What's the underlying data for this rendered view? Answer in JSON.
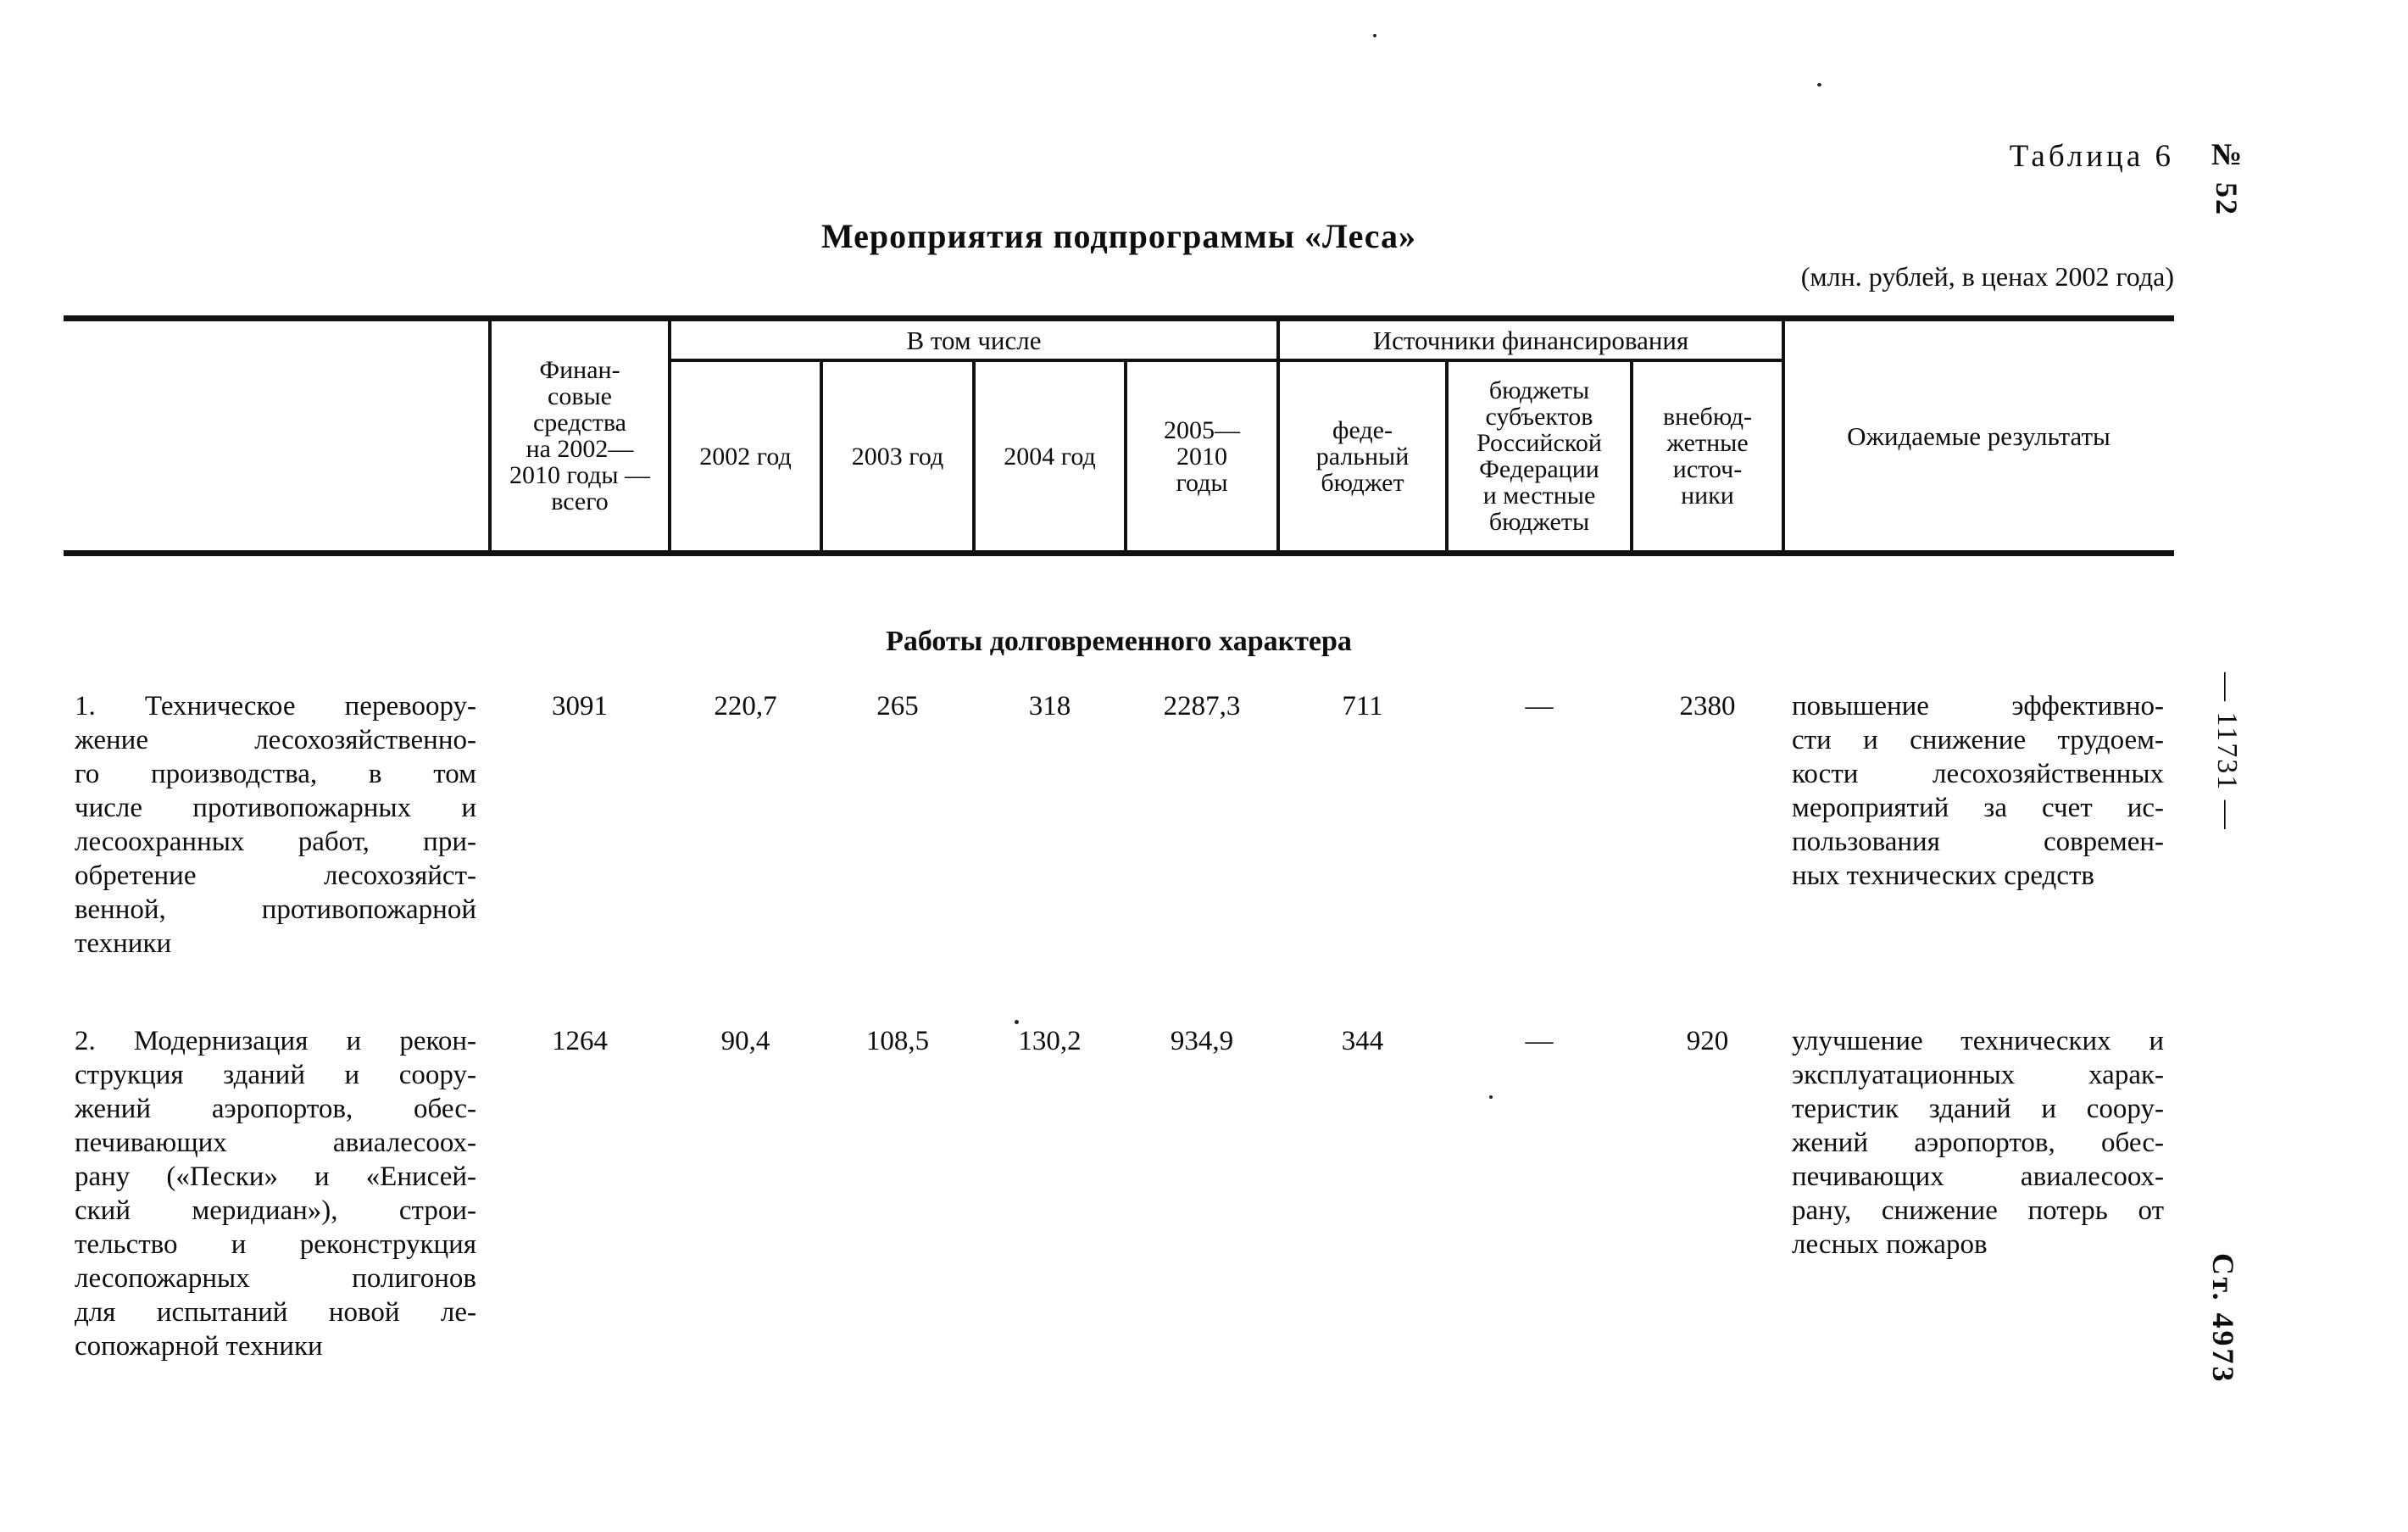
{
  "page": {
    "corner_label": "Таблица 6",
    "issue_number": "№ 52",
    "running_page_number": "— 11731 —",
    "article_number": "Ст. 4973",
    "title": "Мероприятия подпрограммы «Леса»",
    "units_note": "(млн. рублей, в ценах 2002 года)"
  },
  "table": {
    "header": {
      "finance_total": "Финан-\nсовые\nсредства\nна 2002—\n2010 годы —\nвсего",
      "including_group": "В том числе",
      "year_2002": "2002 год",
      "year_2003": "2003 год",
      "year_2004": "2004 год",
      "years_2005_2010": "2005—\n2010\nгоды",
      "sources_group": "Источники финансирования",
      "federal_budget": "феде-\nральный\nбюджет",
      "regional_budgets": "бюджеты\nсубъектов\nРоссийской\nФедерации\nи местные\nбюджеты",
      "extrabudgetary": "внебюд-\nжетные\nисточ-\nники",
      "expected_results": "Ожидаемые результаты"
    },
    "section_title": "Работы долговременного характера",
    "rows": [
      {
        "label_lines": [
          "1. Техническое перевоору-",
          "жение лесохозяйственно-",
          "го производства, в том",
          "числе противопожарных и",
          "лесоохранных работ, при-",
          "обретение лесохозяйст-",
          "венной, противопожарной",
          "техники"
        ],
        "values": [
          "3091",
          "220,7",
          "265",
          "318",
          "2287,3",
          "711",
          "—",
          "2380"
        ],
        "result_lines": [
          "повышение эффективно-",
          "сти и снижение трудоем-",
          "кости лесохозяйственных",
          "мероприятий за счет ис-",
          "пользования современ-",
          "ных технических средств"
        ]
      },
      {
        "label_lines": [
          "2. Модернизация и рекон-",
          "струкция зданий и соору-",
          "жений аэропортов, обес-",
          "печивающих авиалесоох-",
          "рану («Пески» и «Енисей-",
          "ский меридиан»), строи-",
          "тельство и реконструкция",
          "лесопожарных полигонов",
          "для испытаний новой ле-",
          "сопожарной техники"
        ],
        "values": [
          "1264",
          "90,4",
          "108,5",
          "130,2",
          "934,9",
          "344",
          "—",
          "920"
        ],
        "result_lines": [
          "улучшение технических и",
          "эксплуатационных харак-",
          "теристик зданий и соору-",
          "жений аэропортов, обес-",
          "печивающих авиалесоох-",
          "рану, снижение потерь от",
          "лесных пожаров"
        ]
      }
    ]
  }
}
